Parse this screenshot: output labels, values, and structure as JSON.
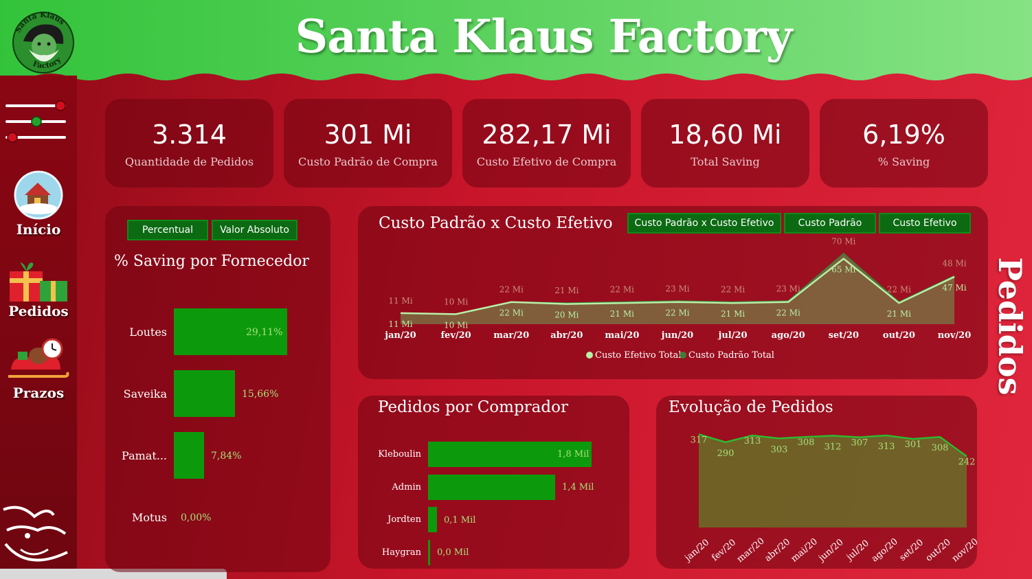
{
  "app": {
    "title": "Santa Klaus Factory",
    "logo_top_text": "Santa Klaus",
    "logo_bottom_text": "Factory",
    "page_name": "Pedidos"
  },
  "colors": {
    "header_green": "#33c33a",
    "header_light_green": "#86e284",
    "bar_green": "#0c9a0c",
    "button_green": "#0b6a12",
    "value_light_green": "#a8e07a"
  },
  "sidebar": {
    "items": [
      {
        "label": "Início",
        "icon": "snow-globe-icon"
      },
      {
        "label": "Pedidos",
        "icon": "gift-icon"
      },
      {
        "label": "Prazos",
        "icon": "sleigh-clock-icon"
      }
    ],
    "filter_icon": "slider-filter-icon"
  },
  "kpis": [
    {
      "value": "3.314",
      "label": "Quantidade de  Pedidos"
    },
    {
      "value": "301 Mi",
      "label": "Custo Padrão de Compra"
    },
    {
      "value": "282,17 Mi",
      "label": "Custo Efetivo de Compra"
    },
    {
      "value": "18,60 Mi",
      "label": "Total Saving"
    },
    {
      "value": "6,19%",
      "label": "% Saving"
    }
  ],
  "saving_panel": {
    "buttons": [
      "Percentual",
      "Valor Absoluto"
    ],
    "title": "% Saving por Fornecedor",
    "chart_data": {
      "type": "bar",
      "orientation": "horizontal",
      "categories": [
        "Loutes",
        "Saveika",
        "Pamat...",
        "Motus"
      ],
      "values": [
        29.11,
        15.66,
        7.84,
        0.0
      ],
      "value_labels": [
        "29,11%",
        "15,66%",
        "7,84%",
        "0,00%"
      ]
    }
  },
  "custo_panel": {
    "title": "Custo Padrão x Custo Efetivo",
    "buttons": [
      "Custo Padrão x Custo Efetivo",
      "Custo Padrão",
      "Custo Efetivo"
    ],
    "legend": [
      "Custo Efetivo Total",
      "Custo Padrão Total"
    ],
    "chart_data": {
      "type": "area",
      "categories": [
        "jan/20",
        "fev/20",
        "mar/20",
        "abr/20",
        "mai/20",
        "jun/20",
        "jul/20",
        "ago/20",
        "set/20",
        "out/20",
        "nov/20"
      ],
      "series": [
        {
          "name": "Custo Efetivo Total",
          "values": [
            11,
            10,
            22,
            20,
            21,
            22,
            21,
            22,
            65,
            21,
            47
          ],
          "labels": [
            "11 Mi",
            "10 Mi",
            "22 Mi",
            "20 Mi",
            "21 Mi",
            "22 Mi",
            "21 Mi",
            "22 Mi",
            "65 Mi",
            "21 Mi",
            "47 Mi"
          ]
        },
        {
          "name": "Custo Padrão Total",
          "values": [
            11,
            10,
            22,
            21,
            22,
            23,
            22,
            23,
            70,
            22,
            48
          ],
          "labels": [
            "11 Mi",
            "10 Mi",
            "22 Mi",
            "21 Mi",
            "22 Mi",
            "23 Mi",
            "22 Mi",
            "23 Mi",
            "70 Mi",
            "22 Mi",
            "48 Mi"
          ]
        }
      ]
    }
  },
  "comprador_panel": {
    "title": "Pedidos por Comprador",
    "chart_data": {
      "type": "bar",
      "orientation": "horizontal",
      "categories": [
        "Kleboulin",
        "Admin",
        "Jordten",
        "Haygran"
      ],
      "values": [
        1.8,
        1.4,
        0.1,
        0.0
      ],
      "value_labels": [
        "1,8 Mil",
        "1,4 Mil",
        "0,1 Mil",
        "0,0 Mil"
      ]
    }
  },
  "evolucao_panel": {
    "title": "Evolução de Pedidos",
    "chart_data": {
      "type": "area",
      "categories": [
        "jan/20",
        "fev/20",
        "mar/20",
        "abr/20",
        "mai/20",
        "jun/20",
        "jul/20",
        "ago/20",
        "set/20",
        "out/20",
        "nov/20"
      ],
      "values": [
        317,
        290,
        313,
        303,
        308,
        312,
        307,
        313,
        301,
        308,
        242
      ]
    }
  }
}
